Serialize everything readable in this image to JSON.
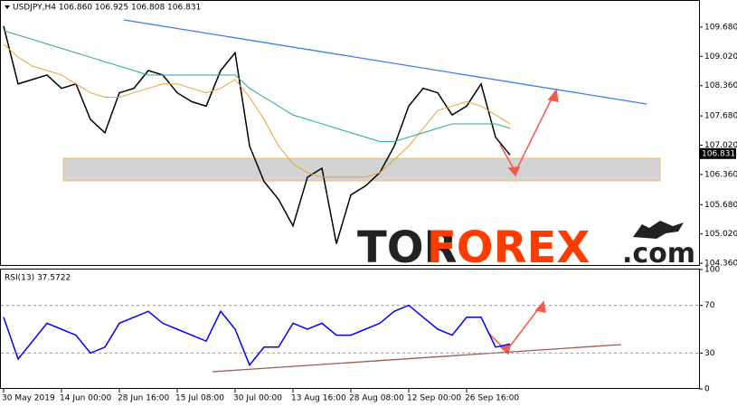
{
  "chart_data": [
    {
      "type": "line",
      "title": "USDJPY,H4  106.860 106.925 106.808 106.831",
      "categories": [
        "30 May 2019",
        null,
        null,
        null,
        "14 Jun 00:00",
        null,
        null,
        null,
        "28 Jun 16:00",
        null,
        null,
        null,
        "15 Jul 08:00",
        null,
        null,
        null,
        "30 Jul 00:00",
        null,
        null,
        null,
        "13 Aug 16:00",
        null,
        null,
        null,
        "28 Aug 08:00",
        null,
        null,
        null,
        "12 Sep 00:00",
        null,
        null,
        null,
        "26 Sep 16:00",
        null,
        null,
        null,
        null,
        null,
        null,
        null,
        null,
        null,
        null,
        null,
        null,
        null,
        null,
        null
      ],
      "series": [
        {
          "color": "#000000",
          "values": [
            109.7,
            108.4,
            108.5,
            108.6,
            108.3,
            108.4,
            107.6,
            107.3,
            108.2,
            108.3,
            108.7,
            108.6,
            108.2,
            108.0,
            107.9,
            108.7,
            109.1,
            107.0,
            106.2,
            105.8,
            105.2,
            106.3,
            106.5,
            104.8,
            105.9,
            106.1,
            106.4,
            107.0,
            107.9,
            108.3,
            108.2,
            107.7,
            107.9,
            108.4,
            107.2,
            106.8,
            null,
            null,
            null,
            null,
            null,
            null,
            null,
            null,
            null,
            null,
            null,
            null
          ]
        },
        {
          "color": "#e8a33a",
          "values": [
            109.3,
            109.0,
            108.8,
            108.7,
            108.6,
            108.4,
            108.2,
            108.1,
            108.1,
            108.2,
            108.3,
            108.4,
            108.4,
            108.3,
            108.2,
            108.3,
            108.5,
            108.1,
            107.6,
            107.0,
            106.6,
            106.4,
            106.3,
            106.3,
            106.3,
            106.3,
            106.4,
            106.7,
            107.0,
            107.4,
            107.8,
            107.9,
            108.0,
            107.9,
            107.7,
            107.5,
            null,
            null,
            null,
            null,
            null,
            null,
            null,
            null,
            null,
            null,
            null,
            null
          ]
        },
        {
          "color": "#2aa59a",
          "values": [
            109.6,
            109.5,
            109.4,
            109.3,
            109.2,
            109.1,
            109.0,
            108.9,
            108.8,
            108.7,
            108.6,
            108.6,
            108.6,
            108.6,
            108.6,
            108.6,
            108.6,
            108.3,
            108.1,
            107.9,
            107.7,
            107.6,
            107.5,
            107.4,
            107.3,
            107.2,
            107.1,
            107.1,
            107.2,
            107.3,
            107.4,
            107.5,
            107.5,
            107.5,
            107.5,
            107.4,
            null,
            null,
            null,
            null,
            null,
            null,
            null,
            null,
            null,
            null,
            null,
            null
          ]
        }
      ],
      "ylim": [
        104.3,
        110.29
      ],
      "yticks": [
        {
          "value": 109.68,
          "label": "109.680"
        },
        {
          "value": 109.02,
          "label": "109.020"
        },
        {
          "value": 108.36,
          "label": "108.360"
        },
        {
          "value": 107.68,
          "label": "107.680"
        },
        {
          "value": 107.02,
          "label": "107.020"
        },
        {
          "value": 106.36,
          "label": "106.360"
        },
        {
          "value": 105.68,
          "label": "105.680"
        },
        {
          "value": 105.02,
          "label": "105.020"
        },
        {
          "value": 104.36,
          "label": "104.360"
        }
      ],
      "last_price": 106.831,
      "watermark": [
        "TOR",
        "FOREX",
        ".com"
      ]
    },
    {
      "type": "line",
      "title": "RSI(13) 37.5722",
      "series": [
        {
          "color": "#0000ff",
          "values": [
            60,
            25,
            40,
            55,
            50,
            45,
            30,
            35,
            55,
            60,
            65,
            55,
            50,
            45,
            40,
            65,
            50,
            20,
            35,
            35,
            55,
            50,
            55,
            45,
            45,
            50,
            55,
            65,
            70,
            60,
            50,
            45,
            60,
            60,
            35,
            37.5722
          ]
        }
      ],
      "ylim": [
        0,
        100
      ],
      "yticks": [
        100,
        70,
        30,
        0
      ]
    }
  ]
}
